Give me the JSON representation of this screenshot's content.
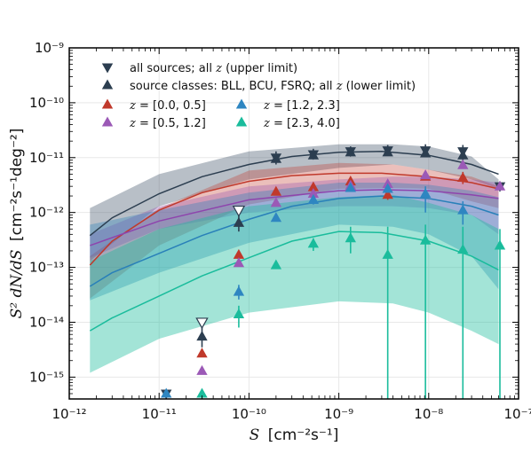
{
  "chart_data": {
    "type": "line",
    "xlabel": {
      "sym": "S",
      "unit": "[cm⁻²s⁻¹]"
    },
    "ylabel": {
      "sym": "S² dN/dS",
      "unit": "[cm⁻²s⁻¹deg⁻²]"
    },
    "xscale": "log",
    "yscale": "log",
    "xlim": [
      1e-12,
      1e-07
    ],
    "ylim": [
      4e-16,
      1e-09
    ],
    "grid": true,
    "legend_placement": "top-left",
    "x_ticks": [
      {
        "v": 1e-12,
        "label": "10⁻¹²"
      },
      {
        "v": 1e-11,
        "label": "10⁻¹¹"
      },
      {
        "v": 1e-10,
        "label": "10⁻¹⁰"
      },
      {
        "v": 1e-09,
        "label": "10⁻⁹"
      },
      {
        "v": 1e-08,
        "label": "10⁻⁸"
      },
      {
        "v": 1e-07,
        "label": "10⁻⁷"
      }
    ],
    "y_ticks": [
      {
        "v": 1e-15,
        "label": "10⁻¹⁵"
      },
      {
        "v": 1e-14,
        "label": "10⁻¹⁴"
      },
      {
        "v": 1e-13,
        "label": "10⁻¹³"
      },
      {
        "v": 1e-12,
        "label": "10⁻¹²"
      },
      {
        "v": 1e-11,
        "label": "10⁻¹¹"
      },
      {
        "v": 1e-10,
        "label": "10⁻¹⁰"
      },
      {
        "v": 1e-09,
        "label": "10⁻⁹"
      }
    ],
    "bands": [
      {
        "name": "all-sources-band",
        "color": "#34495e",
        "opacity": 0.35,
        "x": [
          1.7e-12,
          1e-11,
          1e-10,
          1e-09,
          4e-09,
          1e-08,
          3e-08,
          6e-08
        ],
        "lo": [
          1.3e-13,
          1.3e-12,
          4e-12,
          6.5e-12,
          7.5e-12,
          6e-12,
          4e-12,
          2.7e-12
        ],
        "hi": [
          1.2e-12,
          5e-12,
          1.3e-11,
          1.75e-11,
          1.75e-11,
          1.6e-11,
          1.05e-11,
          4e-12
        ]
      },
      {
        "name": "z-0.0-0.5-band",
        "color": "#c0392b",
        "opacity": 0.32,
        "x": [
          1.7e-12,
          1e-11,
          1e-10,
          1e-09,
          4e-09,
          1e-08,
          3e-08,
          6e-08
        ],
        "lo": [
          2.7e-14,
          2.5e-13,
          1.4e-12,
          2.7e-12,
          2.8e-12,
          2.7e-12,
          1.6e-12,
          1.2e-12
        ],
        "hi": [
          1.6e-13,
          1.2e-12,
          5.8e-12,
          8e-12,
          7.5e-12,
          6e-12,
          4.5e-12,
          3e-12
        ]
      },
      {
        "name": "z-0.5-1.2-band",
        "color": "#8e44ad",
        "opacity": 0.3,
        "x": [
          1.7e-12,
          1e-11,
          1e-10,
          1e-09,
          4e-09,
          1e-08,
          3e-08,
          6e-08
        ],
        "lo": [
          1.5e-13,
          5e-13,
          1e-12,
          1.3e-12,
          1.3e-12,
          1.2e-12,
          9e-13,
          4e-13
        ],
        "hi": [
          4e-13,
          1.3e-12,
          3e-12,
          4e-12,
          4.5e-12,
          4.5e-12,
          4e-12,
          3.5e-12
        ]
      },
      {
        "name": "z-1.2-2.3-band",
        "color": "#2980b9",
        "opacity": 0.35,
        "x": [
          1.7e-12,
          1e-11,
          1e-10,
          1e-09,
          4e-09,
          1e-08,
          3e-08,
          6e-08
        ],
        "lo": [
          2.5e-14,
          8e-14,
          2.8e-13,
          6e-13,
          5.5e-13,
          4e-13,
          1.6e-13,
          4e-14
        ],
        "hi": [
          6e-13,
          1.1e-12,
          2.3e-12,
          3.5e-12,
          3.5e-12,
          3.2e-12,
          2.5e-12,
          1.9e-12
        ]
      },
      {
        "name": "z-2.3-4.0-band",
        "color": "#1abc9c",
        "opacity": 0.4,
        "x": [
          1.7e-12,
          1e-11,
          1e-10,
          1e-09,
          4e-09,
          1e-08,
          3e-08,
          6e-08
        ],
        "lo": [
          1.2e-15,
          5e-15,
          1.5e-14,
          2.4e-14,
          2.2e-14,
          1.5e-14,
          7e-15,
          4e-15
        ],
        "hi": [
          1.3e-13,
          5e-13,
          1.3e-12,
          1.9e-12,
          2.1e-12,
          1.5e-12,
          9e-13,
          5e-13
        ]
      }
    ],
    "lines": [
      {
        "name": "all-sources-line",
        "color": "#2c3e50",
        "x": [
          1.7e-12,
          3e-12,
          1e-11,
          3e-11,
          1e-10,
          3e-10,
          1e-09,
          3e-09,
          1e-08,
          3e-08,
          6e-08
        ],
        "y": [
          3.8e-13,
          8e-13,
          2.2e-12,
          4.5e-12,
          7.5e-12,
          1.05e-11,
          1.25e-11,
          1.3e-11,
          1.1e-11,
          7.5e-12,
          5e-12
        ]
      },
      {
        "name": "z-0.0-0.5-line",
        "color": "#c0392b",
        "x": [
          1.7e-12,
          3e-12,
          1e-11,
          3e-11,
          1e-10,
          3e-10,
          1e-09,
          3e-09,
          1e-08,
          3e-08,
          6e-08
        ],
        "y": [
          1.1e-13,
          3e-13,
          1.1e-12,
          2.3e-12,
          3.7e-12,
          4.7e-12,
          5.2e-12,
          5.2e-12,
          4.5e-12,
          3.5e-12,
          2.7e-12
        ]
      },
      {
        "name": "z-0.5-1.2-line",
        "color": "#8e44ad",
        "x": [
          1.7e-12,
          1e-11,
          1e-10,
          1e-09,
          3e-09,
          1e-08,
          3e-08,
          6e-08
        ],
        "y": [
          2.5e-13,
          7e-13,
          1.7e-12,
          2.5e-12,
          2.6e-12,
          2.5e-12,
          2.1e-12,
          1.8e-12
        ]
      },
      {
        "name": "z-1.2-2.3-line",
        "color": "#2980b9",
        "x": [
          1.7e-12,
          3e-12,
          1e-11,
          3e-11,
          1e-10,
          3e-10,
          1e-09,
          3e-09,
          1e-08,
          3e-08,
          6e-08
        ],
        "y": [
          4.5e-14,
          8e-14,
          1.8e-13,
          3.8e-13,
          7.5e-13,
          1.3e-12,
          1.8e-12,
          2e-12,
          1.8e-12,
          1.3e-12,
          9e-13
        ]
      },
      {
        "name": "z-2.3-4.0-line",
        "color": "#1abc9c",
        "x": [
          1.7e-12,
          3e-12,
          1e-11,
          3e-11,
          1e-10,
          3e-10,
          1e-09,
          3e-09,
          1e-08,
          3e-08,
          6e-08
        ],
        "y": [
          7e-15,
          1.2e-14,
          3e-14,
          7e-14,
          1.5e-13,
          3e-13,
          4.5e-13,
          4.3e-13,
          3e-13,
          1.6e-13,
          9e-14
        ]
      }
    ],
    "series": [
      {
        "name": "all sources; all z (upper limit)",
        "color": "#2c3e50",
        "marker": "tri-down",
        "points": [
          {
            "x": 1.2e-11,
            "y": 5e-16,
            "lo": 4e-16,
            "hi": 5.5e-16
          },
          {
            "x": 3e-11,
            "y": 1e-14,
            "open": true
          },
          {
            "x": 7.7e-11,
            "y": 1.1e-12,
            "open": true
          },
          {
            "x": 2e-10,
            "y": 1e-11,
            "lo": 7.5e-12,
            "hi": 1.3e-11
          },
          {
            "x": 5.2e-10,
            "y": 1.15e-11,
            "lo": 9.5e-12,
            "hi": 1.45e-11
          },
          {
            "x": 1.35e-09,
            "y": 1.3e-11,
            "lo": 1.1e-11,
            "hi": 1.6e-11
          },
          {
            "x": 3.5e-09,
            "y": 1.35e-11,
            "lo": 1.1e-11,
            "hi": 1.7e-11
          },
          {
            "x": 9.2e-09,
            "y": 1.35e-11,
            "lo": 1.05e-11,
            "hi": 1.75e-11
          },
          {
            "x": 2.4e-08,
            "y": 1.3e-11,
            "lo": 9e-12,
            "hi": 1.7e-11
          },
          {
            "x": 6.2e-08,
            "y": 3e-12,
            "lo": 2.5e-12,
            "hi": 3.6e-12
          }
        ]
      },
      {
        "name": "source classes: BLL, BCU, FSRQ; all z (lower limit)",
        "color": "#2c3e50",
        "marker": "tri-up",
        "points": [
          {
            "x": 3e-11,
            "y": 5.5e-15,
            "lo": 3.5e-15,
            "hi": 8e-15
          },
          {
            "x": 7.7e-11,
            "y": 6.5e-13,
            "lo": 4.5e-13,
            "hi": 9e-13
          },
          {
            "x": 2e-10,
            "y": 9.5e-12
          },
          {
            "x": 5.2e-10,
            "y": 1.1e-11
          },
          {
            "x": 1.35e-09,
            "y": 1.25e-11
          },
          {
            "x": 3.5e-09,
            "y": 1.25e-11
          },
          {
            "x": 9.2e-09,
            "y": 1.2e-11
          },
          {
            "x": 2.4e-08,
            "y": 1.1e-11
          }
        ]
      },
      {
        "name": "z = [0.0, 0.5]",
        "color": "#c0392b",
        "marker": "tri-up",
        "points": [
          {
            "x": 3e-11,
            "y": 2.7e-15
          },
          {
            "x": 7.7e-11,
            "y": 1.7e-13
          },
          {
            "x": 2e-10,
            "y": 2.4e-12
          },
          {
            "x": 5.2e-10,
            "y": 2.9e-12
          },
          {
            "x": 1.35e-09,
            "y": 3.7e-12,
            "lo": 3e-12,
            "hi": 4.4e-12
          },
          {
            "x": 3.5e-09,
            "y": 2.1e-12,
            "lo": 1.7e-12,
            "hi": 2.5e-12
          },
          {
            "x": 9.2e-09,
            "y": 4.5e-12
          },
          {
            "x": 2.4e-08,
            "y": 4.3e-12,
            "lo": 3.3e-12,
            "hi": 5.5e-12
          }
        ]
      },
      {
        "name": "z = [0.5, 1.2]",
        "color": "#9b59b6",
        "marker": "tri-up",
        "points": [
          {
            "x": 3e-11,
            "y": 1.3e-15
          },
          {
            "x": 7.7e-11,
            "y": 1.2e-13
          },
          {
            "x": 2e-10,
            "y": 1.5e-12
          },
          {
            "x": 5.2e-10,
            "y": 2.2e-12
          },
          {
            "x": 1.35e-09,
            "y": 3.1e-12
          },
          {
            "x": 3.5e-09,
            "y": 3.3e-12
          },
          {
            "x": 9.2e-09,
            "y": 4.8e-12
          },
          {
            "x": 2.4e-08,
            "y": 7.3e-12
          },
          {
            "x": 6.2e-08,
            "y": 3e-12
          }
        ]
      },
      {
        "name": "z = [1.2, 2.3]",
        "color": "#2e86c1",
        "marker": "tri-up",
        "points": [
          {
            "x": 1.2e-11,
            "y": 5e-16
          },
          {
            "x": 7.7e-11,
            "y": 3.6e-14,
            "lo": 2.6e-14,
            "hi": 4.8e-14
          },
          {
            "x": 2e-10,
            "y": 8e-13
          },
          {
            "x": 5.2e-10,
            "y": 1.7e-12,
            "lo": 1.4e-12,
            "hi": 2e-12
          },
          {
            "x": 1.35e-09,
            "y": 2.8e-12
          },
          {
            "x": 3.5e-09,
            "y": 2.7e-12,
            "lo": 2.2e-12,
            "hi": 3.2e-12
          },
          {
            "x": 9.2e-09,
            "y": 2.2e-12,
            "lo": 1e-12,
            "hi": 3e-12
          },
          {
            "x": 2.4e-08,
            "y": 1.1e-12,
            "lo": 6e-13,
            "hi": 1.6e-12
          }
        ]
      },
      {
        "name": "z = [2.3, 4.0]",
        "color": "#1abc9c",
        "marker": "tri-up",
        "points": [
          {
            "x": 3e-11,
            "y": 5e-16,
            "lo": 4e-16,
            "hi": 6e-16
          },
          {
            "x": 7.7e-11,
            "y": 1.4e-14,
            "lo": 8e-15,
            "hi": 2e-14
          },
          {
            "x": 2e-10,
            "y": 1.1e-13
          },
          {
            "x": 5.2e-10,
            "y": 2.7e-13,
            "lo": 2e-13,
            "hi": 3.4e-13
          },
          {
            "x": 1.35e-09,
            "y": 3.4e-13,
            "lo": 1.8e-13,
            "hi": 5.5e-13
          },
          {
            "x": 3.5e-09,
            "y": 1.7e-13,
            "lo": 4e-16,
            "hi": 5.5e-13
          },
          {
            "x": 9.2e-09,
            "y": 3.1e-13,
            "lo": 4e-16,
            "hi": 6e-13
          },
          {
            "x": 2.4e-08,
            "y": 2.1e-13,
            "lo": 4e-16,
            "hi": 5.5e-13
          },
          {
            "x": 6.2e-08,
            "y": 2.5e-13,
            "lo": 4e-16,
            "hi": 5e-13
          }
        ]
      }
    ],
    "legend": {
      "line1": [
        {
          "label": "all sources; all ",
          "var": "z",
          "suffix": " (upper limit)",
          "color": "#2c3e50",
          "marker": "tri-down"
        },
        {
          "label": "source classes: BLL, BCU, FSRQ; all ",
          "var": "z",
          "suffix": " (lower limit)",
          "color": "#2c3e50",
          "marker": "tri-up"
        }
      ],
      "grid": [
        {
          "var": "z",
          "label": " = [0.0, 0.5]",
          "color": "#c0392b"
        },
        {
          "var": "z",
          "label": " = [1.2, 2.3]",
          "color": "#2e86c1"
        },
        {
          "var": "z",
          "label": " = [0.5, 1.2]",
          "color": "#9b59b6"
        },
        {
          "var": "z",
          "label": " = [2.3, 4.0]",
          "color": "#1abc9c"
        }
      ]
    }
  }
}
